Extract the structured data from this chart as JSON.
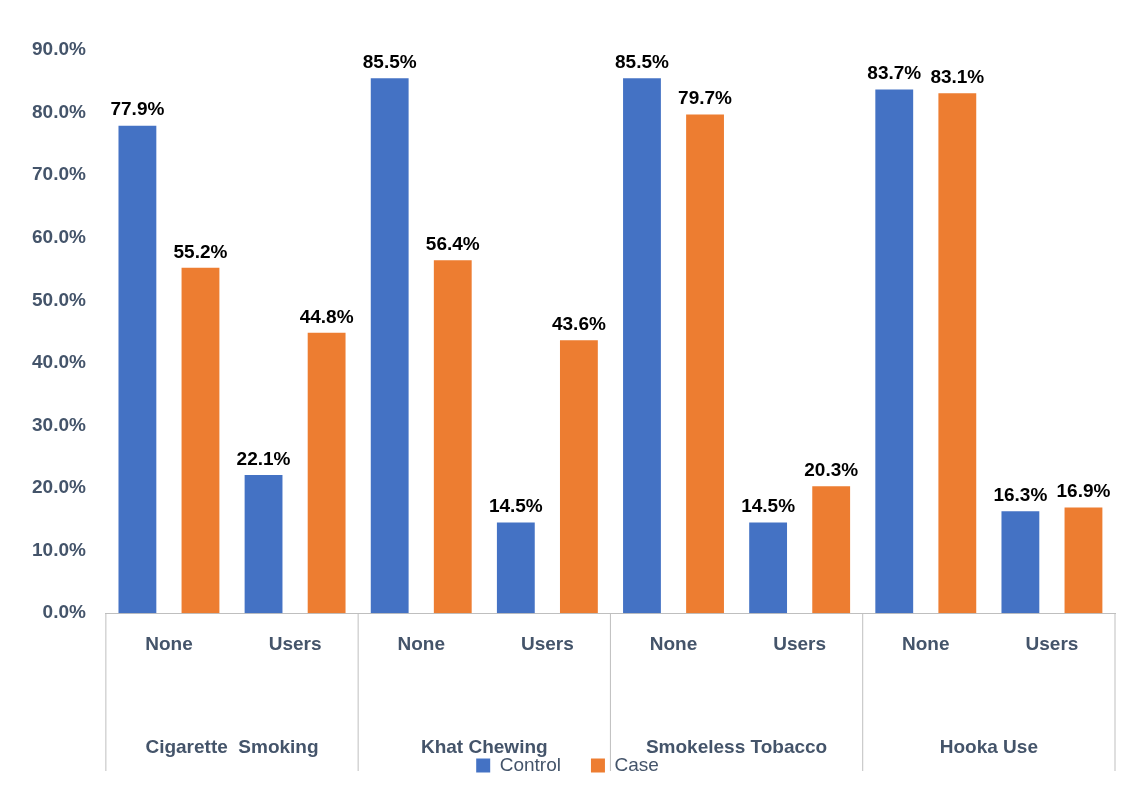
{
  "chart_data": {
    "type": "bar",
    "categories": [
      "None",
      "Users",
      "None",
      "Users",
      "None",
      "Users",
      "None",
      "Users"
    ],
    "annotations": [
      "Cigarette  Smoking",
      "Khat Chewing",
      "Smokeless Tobacco",
      "Hooka Use"
    ],
    "series": [
      {
        "name": "Control",
        "color": "#4472c4",
        "values": [
          77.9,
          22.1,
          85.5,
          14.5,
          85.5,
          14.5,
          83.7,
          16.3
        ],
        "value_labels": [
          "77.9%",
          "22.1%",
          "85.5%",
          "14.5%",
          "85.5%",
          "14.5%",
          "83.7%",
          "16.3%"
        ]
      },
      {
        "name": "Case",
        "color": "#ed7d31",
        "values": [
          55.2,
          44.8,
          56.4,
          43.6,
          79.7,
          20.3,
          83.1,
          16.9
        ],
        "value_labels": [
          "55.2%",
          "44.8%",
          "56.4%",
          "43.6%",
          "79.7%",
          "20.3%",
          "83.1%",
          "16.9%"
        ]
      }
    ],
    "ylim": [
      0,
      90
    ],
    "yticks": [
      {
        "value": 0,
        "label": "0.0%"
      },
      {
        "value": 10,
        "label": "10.0%"
      },
      {
        "value": 20,
        "label": "20.0%"
      },
      {
        "value": 30,
        "label": "30.0%"
      },
      {
        "value": 40,
        "label": "40.0%"
      },
      {
        "value": 50,
        "label": "50.0%"
      },
      {
        "value": 60,
        "label": "60.0%"
      },
      {
        "value": 70,
        "label": "70.0%"
      },
      {
        "value": 80,
        "label": "80.0%"
      },
      {
        "value": 90,
        "label": "90.0%"
      }
    ],
    "grid": false,
    "legend": "bottom"
  }
}
